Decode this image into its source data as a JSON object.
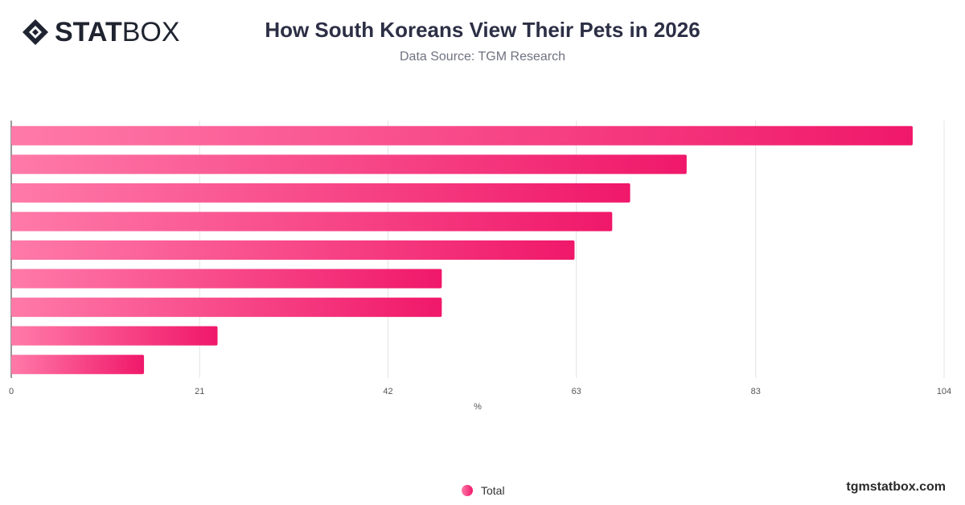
{
  "brand": {
    "name_bold": "STAT",
    "name_light": "BOX",
    "site": "tgmstatbox.com"
  },
  "header": {
    "title": "How South Koreans View Their Pets in 2026",
    "subtitle": "Data Source: TGM Research"
  },
  "chart_data": {
    "type": "bar",
    "orientation": "horizontal",
    "title": "How South Koreans View Their Pets in 2026",
    "subtitle": "Data Source: TGM Research",
    "xlabel": "%",
    "ylabel": "",
    "xlim": [
      0,
      104
    ],
    "xticks": [
      "0",
      "21",
      "42",
      "63",
      "83",
      "104"
    ],
    "grid": true,
    "legend_position": "bottom",
    "categories": [
      "",
      "",
      "",
      "",
      "",
      "",
      "",
      "",
      ""
    ],
    "series": [
      {
        "name": "Total",
        "values": [
          100.5,
          75.3,
          69.0,
          67.0,
          62.8,
          48.0,
          48.0,
          23.0,
          14.8
        ]
      }
    ],
    "colors": {
      "bar_start": "#ff7aa8",
      "bar_end": "#f0186a"
    }
  }
}
